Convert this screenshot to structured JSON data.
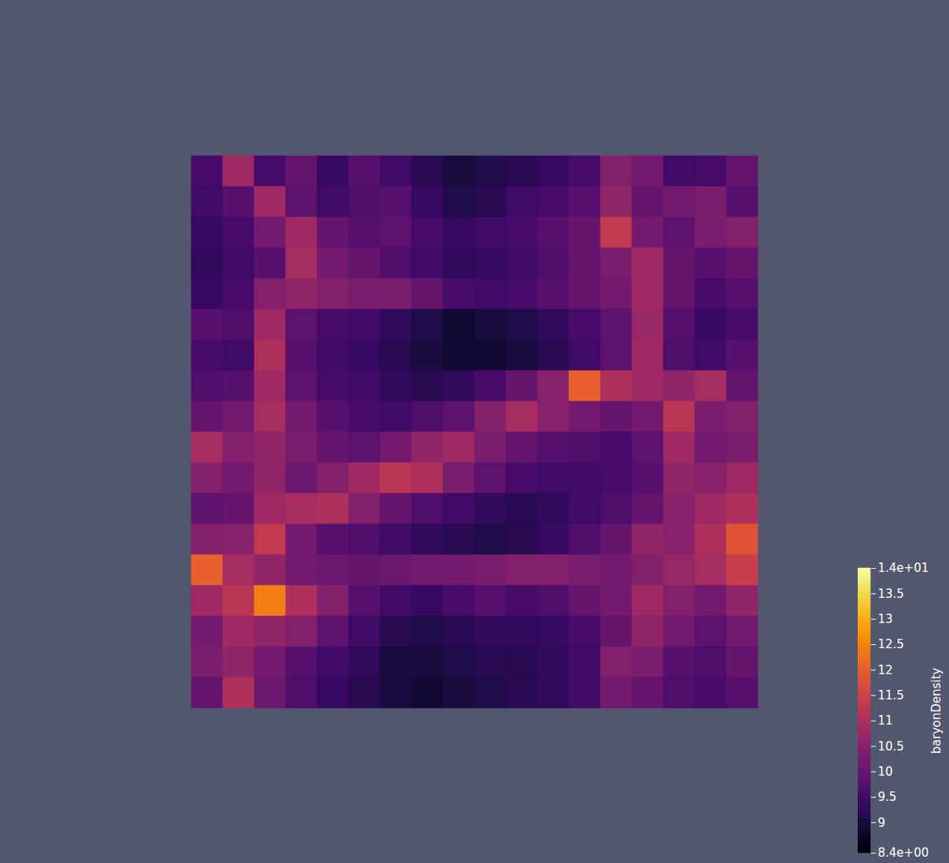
{
  "chart_data": {
    "type": "heatmap",
    "color": "inferno",
    "tick_labels": false,
    "values": [
      [
        9.6,
        10.8,
        9.6,
        10.0,
        9.4,
        9.8,
        9.5,
        9.2,
        9.0,
        9.1,
        9.2,
        9.4,
        9.6,
        10.4,
        10.2,
        9.5,
        9.6,
        10.0
      ],
      [
        9.5,
        9.8,
        10.8,
        9.9,
        9.5,
        9.7,
        9.8,
        9.4,
        9.1,
        9.2,
        9.5,
        9.6,
        9.8,
        10.6,
        10.0,
        10.2,
        10.3,
        9.8
      ],
      [
        9.4,
        9.6,
        10.2,
        10.8,
        10.0,
        9.8,
        9.9,
        9.6,
        9.4,
        9.5,
        9.6,
        9.8,
        10.0,
        11.3,
        10.2,
        9.9,
        10.3,
        10.4
      ],
      [
        9.3,
        9.5,
        9.8,
        10.9,
        10.2,
        10.0,
        9.7,
        9.5,
        9.3,
        9.4,
        9.5,
        9.7,
        10.0,
        10.3,
        10.8,
        10.0,
        9.8,
        10.0
      ],
      [
        9.4,
        9.6,
        10.4,
        10.6,
        10.4,
        10.3,
        10.3,
        10.0,
        9.6,
        9.5,
        9.6,
        9.8,
        10.0,
        10.2,
        10.8,
        10.0,
        9.6,
        9.8
      ],
      [
        9.8,
        9.7,
        10.8,
        9.9,
        9.6,
        9.5,
        9.3,
        9.1,
        8.9,
        9.0,
        9.1,
        9.3,
        9.6,
        9.9,
        10.7,
        9.8,
        9.4,
        9.6
      ],
      [
        9.6,
        9.5,
        11.0,
        9.8,
        9.5,
        9.4,
        9.2,
        9.0,
        8.9,
        8.9,
        9.0,
        9.2,
        9.5,
        9.9,
        10.8,
        9.7,
        9.5,
        9.8
      ],
      [
        9.7,
        9.8,
        10.8,
        9.9,
        9.6,
        9.5,
        9.3,
        9.2,
        9.3,
        9.6,
        10.0,
        10.5,
        12.0,
        11.0,
        10.8,
        10.6,
        10.9,
        10.0
      ],
      [
        10.0,
        10.2,
        10.9,
        10.2,
        9.8,
        9.6,
        9.5,
        9.7,
        9.9,
        10.4,
        10.9,
        10.5,
        10.2,
        10.0,
        10.2,
        11.2,
        10.3,
        10.4
      ],
      [
        10.9,
        10.4,
        10.6,
        10.3,
        10.0,
        9.9,
        10.2,
        10.6,
        10.8,
        10.3,
        10.0,
        9.8,
        9.7,
        9.6,
        9.9,
        10.8,
        10.2,
        10.3
      ],
      [
        10.4,
        10.2,
        10.6,
        10.1,
        10.4,
        10.8,
        11.2,
        11.0,
        10.3,
        9.9,
        9.6,
        9.5,
        9.5,
        9.6,
        9.8,
        10.6,
        10.5,
        10.8
      ],
      [
        9.9,
        10.0,
        10.8,
        10.9,
        11.0,
        10.4,
        10.0,
        9.7,
        9.5,
        9.3,
        9.2,
        9.3,
        9.5,
        9.7,
        10.0,
        10.5,
        10.8,
        11.0
      ],
      [
        10.4,
        10.5,
        11.3,
        10.2,
        9.8,
        9.7,
        9.5,
        9.3,
        9.2,
        9.1,
        9.2,
        9.4,
        9.7,
        10.0,
        10.6,
        10.5,
        11.0,
        11.8
      ],
      [
        12.0,
        10.9,
        10.6,
        10.2,
        10.1,
        10.0,
        10.1,
        10.2,
        10.2,
        10.3,
        10.4,
        10.4,
        10.3,
        10.2,
        10.4,
        10.7,
        10.9,
        11.4
      ],
      [
        10.8,
        11.2,
        12.4,
        11.0,
        10.4,
        9.8,
        9.5,
        9.4,
        9.6,
        9.8,
        9.6,
        9.7,
        10.0,
        10.2,
        10.8,
        10.4,
        10.2,
        10.6
      ],
      [
        10.2,
        10.8,
        10.6,
        10.4,
        9.9,
        9.5,
        9.2,
        9.1,
        9.2,
        9.3,
        9.3,
        9.4,
        9.6,
        10.0,
        10.6,
        10.2,
        9.9,
        10.2
      ],
      [
        10.3,
        10.6,
        10.2,
        9.8,
        9.5,
        9.3,
        9.0,
        9.0,
        9.1,
        9.2,
        9.2,
        9.3,
        9.5,
        10.4,
        10.3,
        9.8,
        9.7,
        10.0
      ],
      [
        10.0,
        11.0,
        10.1,
        9.7,
        9.4,
        9.2,
        9.0,
        8.9,
        9.0,
        9.1,
        9.2,
        9.3,
        9.5,
        10.2,
        10.0,
        9.7,
        9.6,
        9.8
      ]
    ],
    "colorbar": {
      "label": "baryonDensity",
      "range": [
        8.4,
        14
      ],
      "ticks": [
        {
          "value": 8.4,
          "label": "8.4e+00"
        },
        9,
        9.5,
        10,
        10.5,
        11,
        11.5,
        12,
        12.5,
        13,
        13.5,
        {
          "value": 14,
          "label": "1.4e+01"
        }
      ]
    }
  }
}
